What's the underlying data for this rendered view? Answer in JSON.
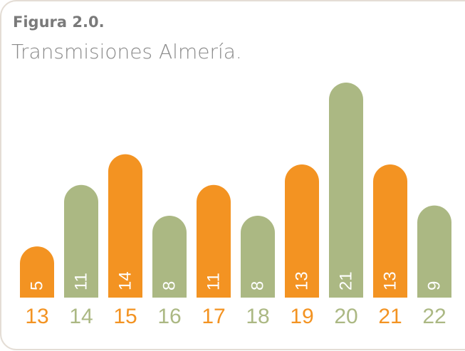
{
  "chart_data": {
    "type": "bar",
    "title": "Figura 2.0.",
    "subtitle": "Transmisiones Almería.",
    "categories": [
      "13",
      "14",
      "15",
      "16",
      "17",
      "18",
      "19",
      "20",
      "21",
      "22"
    ],
    "values": [
      5,
      11,
      14,
      8,
      11,
      8,
      13,
      21,
      13,
      9
    ],
    "colors": [
      "#f39322",
      "#abb883",
      "#f39322",
      "#abb883",
      "#f39322",
      "#abb883",
      "#f39322",
      "#abb883",
      "#f39322",
      "#abb883"
    ]
  }
}
